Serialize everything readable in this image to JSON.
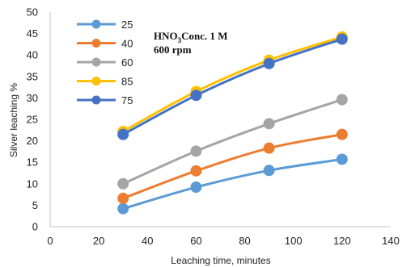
{
  "chart_data": {
    "type": "line",
    "title": "",
    "xlabel": "Leaching time, minutes",
    "ylabel": "Silver leaching %",
    "xlim": [
      0,
      140
    ],
    "ylim": [
      0,
      50
    ],
    "xticks": [
      0,
      20,
      40,
      60,
      80,
      100,
      120,
      140
    ],
    "yticks": [
      0,
      5,
      10,
      15,
      20,
      25,
      30,
      35,
      40,
      45,
      50
    ],
    "grid": false,
    "legend_position": "top-left",
    "annotation": {
      "line1_main": "HNO",
      "line1_sub": "3",
      "line1_rest": "Conc. 1 M",
      "line2": "600 rpm"
    },
    "x": [
      30,
      60,
      90,
      120
    ],
    "series": [
      {
        "name": "25",
        "color": "#5B9BD5",
        "values": [
          4.2,
          9.2,
          13.1,
          15.7
        ]
      },
      {
        "name": "40",
        "color": "#ED7D31",
        "values": [
          6.6,
          13.0,
          18.3,
          21.5
        ]
      },
      {
        "name": "60",
        "color": "#A5A5A5",
        "values": [
          10.0,
          17.6,
          24.0,
          29.6
        ]
      },
      {
        "name": "85",
        "color": "#FFC000",
        "values": [
          22.2,
          31.5,
          38.8,
          44.2
        ]
      },
      {
        "name": "75",
        "color": "#4472C4",
        "values": [
          21.5,
          30.6,
          38.0,
          43.7
        ]
      }
    ]
  }
}
